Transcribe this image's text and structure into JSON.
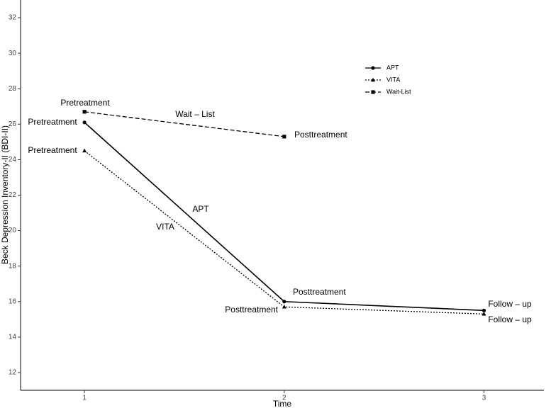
{
  "chart_data": {
    "type": "line",
    "x_label": "Time",
    "y_label": "Beck Depression Inventory-II (BDI-II)",
    "x": [
      1,
      2,
      3
    ],
    "series": [
      {
        "name": "APT",
        "color": "#000000",
        "linestyle": "solid",
        "marker": "circle",
        "values": [
          26.1,
          16.0,
          15.5
        ]
      },
      {
        "name": "VITA",
        "color": "#000000",
        "linestyle": "dotted",
        "marker": "triangle",
        "values": [
          24.5,
          15.7,
          15.3
        ]
      },
      {
        "name": "Wait-List",
        "color": "#000000",
        "linestyle": "dashed",
        "marker": "square",
        "values": [
          26.7,
          25.3,
          null
        ]
      }
    ],
    "xlim": [
      0.68,
      3.3
    ],
    "xticks": [
      1,
      2,
      3
    ],
    "ylim": [
      11,
      33
    ],
    "yticks": [
      12,
      14,
      16,
      18,
      20,
      22,
      24,
      26,
      28,
      30,
      32
    ],
    "grid": false,
    "legend": "top-right",
    "annotations": [
      "Pretreatment",
      "Wait – List",
      "Posttreatment",
      "Pretreatment",
      "Pretreatment",
      "APT",
      "VITA",
      "Posttreatment",
      "Posttreatment",
      "Follow – up",
      "Follow – up"
    ]
  }
}
